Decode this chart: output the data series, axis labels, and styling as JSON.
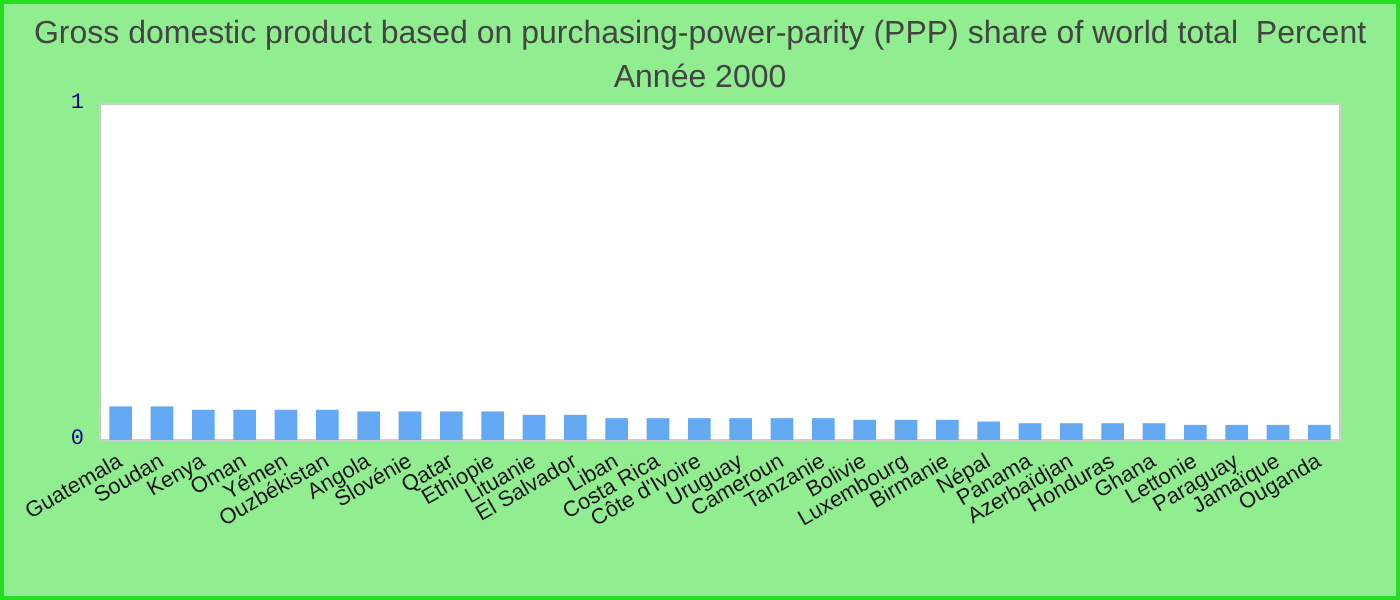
{
  "chart_data": {
    "type": "bar",
    "title": "Gross domestic product based on purchasing-power-parity (PPP) share of world total  Percent",
    "subtitle": "Année 2000",
    "categories": [
      "Guatemala",
      "Soudan",
      "Kenya",
      "Oman",
      "Yémen",
      "Ouzbékistan",
      "Angola",
      "Slovénie",
      "Qatar",
      "Ethiopie",
      "Lituanie",
      "El Salvador",
      "Liban",
      "Costa Rica",
      "Côte d'Ivoire",
      "Uruguay",
      "Cameroun",
      "Tanzanie",
      "Bolivie",
      "Luxembourg",
      "Birmanie",
      "Népal",
      "Panama",
      "Azerbaïdjan",
      "Honduras",
      "Ghana",
      "Lettonie",
      "Paraguay",
      "Jamaïque",
      "Ouganda"
    ],
    "values": [
      0.1,
      0.1,
      0.09,
      0.09,
      0.09,
      0.09,
      0.085,
      0.085,
      0.085,
      0.085,
      0.075,
      0.075,
      0.065,
      0.065,
      0.065,
      0.065,
      0.065,
      0.065,
      0.06,
      0.06,
      0.06,
      0.055,
      0.05,
      0.05,
      0.05,
      0.05,
      0.045,
      0.045,
      0.045,
      0.045
    ],
    "color": "#63a9f4",
    "ylim": [
      0,
      1
    ],
    "yticks": [
      0,
      1
    ]
  }
}
